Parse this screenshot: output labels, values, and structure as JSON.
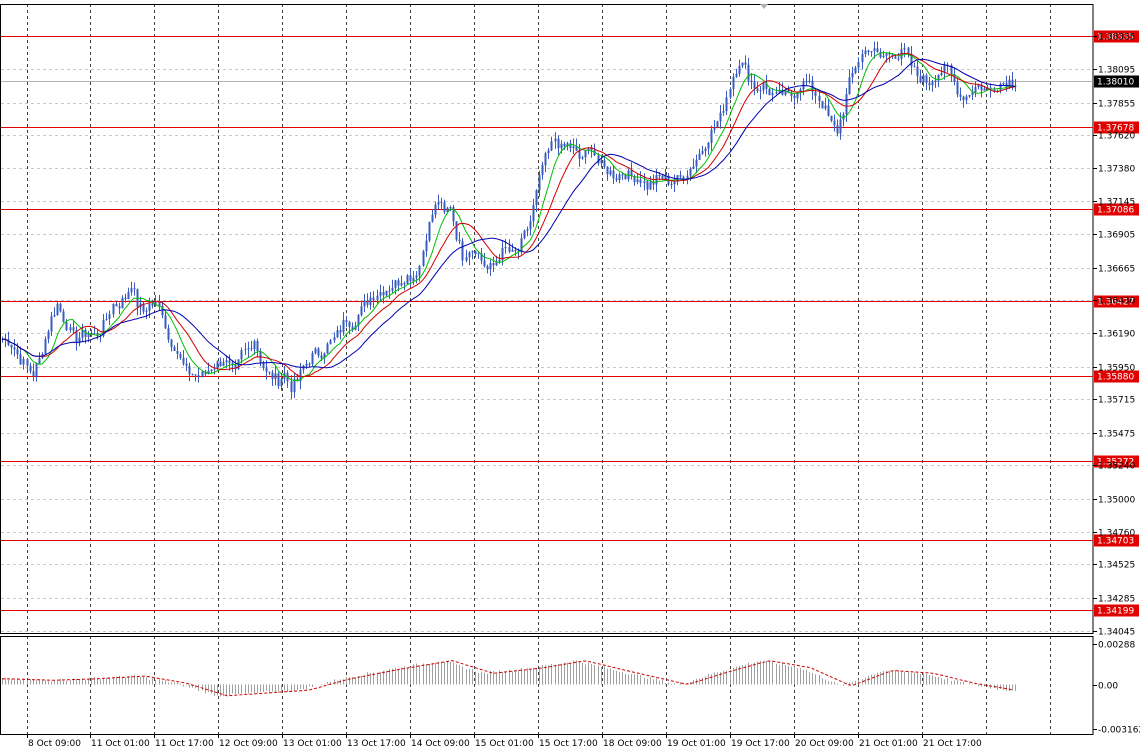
{
  "chart_data": [
    {
      "type": "candlestick",
      "ylim": [
        1.34045,
        1.38335
      ],
      "y_ticks": [
        "1.38335",
        "1.38095",
        "1.37855",
        "1.37620",
        "1.37380",
        "1.37145",
        "1.36905",
        "1.36665",
        "1.36430",
        "1.36190",
        "1.35950",
        "1.35715",
        "1.35475",
        "1.35240",
        "1.35000",
        "1.34760",
        "1.34525",
        "1.34285",
        "1.34045"
      ],
      "current_price": "1.38010",
      "levels": [
        "1.38335",
        "1.37678",
        "1.37086",
        "1.36427",
        "1.35880",
        "1.35272",
        "1.34703",
        "1.34199"
      ],
      "x_labels": [
        "8 Oct 09:00",
        "11 Oct 01:00",
        "11 Oct 17:00",
        "12 Oct 09:00",
        "13 Oct 01:00",
        "13 Oct 17:00",
        "14 Oct 09:00",
        "15 Oct 01:00",
        "15 Oct 17:00",
        "18 Oct 09:00",
        "19 Oct 01:00",
        "19 Oct 17:00",
        "20 Oct 09:00",
        "21 Oct 01:00",
        "21 Oct 17:00"
      ],
      "close_path": [
        [
          0,
          1.3615
        ],
        [
          6,
          1.3614
        ],
        [
          12,
          1.3608
        ],
        [
          18,
          1.36
        ],
        [
          24,
          1.3595
        ],
        [
          30,
          1.359
        ],
        [
          36,
          1.36
        ],
        [
          42,
          1.3615
        ],
        [
          48,
          1.363
        ],
        [
          54,
          1.364
        ],
        [
          60,
          1.363
        ],
        [
          66,
          1.362
        ],
        [
          72,
          1.3615
        ],
        [
          78,
          1.3618
        ],
        [
          84,
          1.362
        ],
        [
          90,
          1.3618
        ],
        [
          96,
          1.362
        ],
        [
          102,
          1.363
        ],
        [
          108,
          1.364
        ],
        [
          114,
          1.364
        ],
        [
          120,
          1.3645
        ],
        [
          126,
          1.3655
        ],
        [
          132,
          1.364
        ],
        [
          138,
          1.3635
        ],
        [
          144,
          1.364
        ],
        [
          150,
          1.364
        ],
        [
          156,
          1.3635
        ],
        [
          162,
          1.3615
        ],
        [
          168,
          1.361
        ],
        [
          174,
          1.36
        ],
        [
          180,
          1.3592
        ],
        [
          186,
          1.359
        ],
        [
          192,
          1.3588
        ],
        [
          198,
          1.359
        ],
        [
          204,
          1.3595
        ],
        [
          210,
          1.3597
        ],
        [
          216,
          1.36
        ],
        [
          222,
          1.3595
        ],
        [
          228,
          1.359
        ],
        [
          234,
          1.3605
        ],
        [
          240,
          1.3608
        ],
        [
          246,
          1.3615
        ],
        [
          252,
          1.36
        ],
        [
          258,
          1.359
        ],
        [
          264,
          1.3588
        ],
        [
          270,
          1.3585
        ],
        [
          276,
          1.359
        ],
        [
          282,
          1.358
        ],
        [
          288,
          1.3585
        ],
        [
          294,
          1.3595
        ],
        [
          300,
          1.36
        ],
        [
          306,
          1.3605
        ],
        [
          312,
          1.3605
        ],
        [
          318,
          1.361
        ],
        [
          324,
          1.3615
        ],
        [
          330,
          1.3622
        ],
        [
          336,
          1.363
        ],
        [
          342,
          1.3625
        ],
        [
          348,
          1.3632
        ],
        [
          354,
          1.364
        ],
        [
          360,
          1.3645
        ],
        [
          366,
          1.3648
        ],
        [
          372,
          1.365
        ],
        [
          378,
          1.3652
        ],
        [
          384,
          1.3655
        ],
        [
          390,
          1.3658
        ],
        [
          396,
          1.366
        ],
        [
          402,
          1.366
        ],
        [
          408,
          1.3668
        ],
        [
          414,
          1.369
        ],
        [
          420,
          1.3705
        ],
        [
          426,
          1.3715
        ],
        [
          432,
          1.3705
        ],
        [
          438,
          1.3712
        ],
        [
          444,
          1.369
        ],
        [
          450,
          1.3675
        ],
        [
          456,
          1.368
        ],
        [
          462,
          1.368
        ],
        [
          468,
          1.3672
        ],
        [
          474,
          1.3665
        ],
        [
          480,
          1.3668
        ],
        [
          486,
          1.3675
        ],
        [
          492,
          1.368
        ],
        [
          498,
          1.3676
        ],
        [
          504,
          1.3678
        ],
        [
          510,
          1.369
        ],
        [
          516,
          1.37
        ],
        [
          522,
          1.372
        ],
        [
          528,
          1.374
        ],
        [
          534,
          1.375
        ],
        [
          540,
          1.376
        ],
        [
          546,
          1.3752
        ],
        [
          552,
          1.3755
        ],
        [
          558,
          1.3752
        ],
        [
          564,
          1.3745
        ],
        [
          570,
          1.3748
        ],
        [
          576,
          1.3755
        ],
        [
          582,
          1.3742
        ],
        [
          588,
          1.3738
        ],
        [
          594,
          1.3735
        ],
        [
          600,
          1.3732
        ],
        [
          606,
          1.3735
        ],
        [
          612,
          1.3733
        ],
        [
          618,
          1.3732
        ],
        [
          624,
          1.373
        ],
        [
          630,
          1.3725
        ],
        [
          636,
          1.3728
        ],
        [
          642,
          1.3732
        ],
        [
          648,
          1.373
        ],
        [
          654,
          1.3728
        ],
        [
          660,
          1.373
        ],
        [
          666,
          1.3733
        ],
        [
          672,
          1.3738
        ],
        [
          678,
          1.3745
        ],
        [
          684,
          1.3752
        ],
        [
          690,
          1.376
        ],
        [
          696,
          1.3768
        ],
        [
          702,
          1.3775
        ],
        [
          708,
          1.379
        ],
        [
          714,
          1.3805
        ],
        [
          720,
          1.3815
        ],
        [
          726,
          1.381
        ],
        [
          732,
          1.38
        ],
        [
          738,
          1.3795
        ],
        [
          744,
          1.3798
        ],
        [
          750,
          1.3793
        ],
        [
          756,
          1.379
        ],
        [
          762,
          1.3792
        ],
        [
          768,
          1.379
        ],
        [
          774,
          1.3792
        ],
        [
          780,
          1.3798
        ],
        [
          786,
          1.38
        ],
        [
          792,
          1.3795
        ],
        [
          798,
          1.3788
        ],
        [
          804,
          1.378
        ],
        [
          810,
          1.377
        ],
        [
          816,
          1.3765
        ],
        [
          822,
          1.378
        ],
        [
          828,
          1.38
        ],
        [
          834,
          1.3812
        ],
        [
          840,
          1.382
        ],
        [
          846,
          1.3825
        ],
        [
          852,
          1.3822
        ],
        [
          858,
          1.3818
        ],
        [
          864,
          1.382
        ],
        [
          870,
          1.3822
        ],
        [
          876,
          1.3818
        ],
        [
          882,
          1.3823
        ],
        [
          888,
          1.3812
        ],
        [
          894,
          1.3805
        ],
        [
          900,
          1.3802
        ],
        [
          906,
          1.38
        ],
        [
          912,
          1.3805
        ],
        [
          918,
          1.3808
        ],
        [
          924,
          1.381
        ],
        [
          930,
          1.38
        ],
        [
          936,
          1.379
        ],
        [
          942,
          1.379
        ],
        [
          948,
          1.3795
        ],
        [
          954,
          1.3798
        ],
        [
          960,
          1.3795
        ],
        [
          966,
          1.3795
        ],
        [
          972,
          1.3798
        ],
        [
          978,
          1.38
        ],
        [
          984,
          1.3801
        ],
        [
          990,
          1.3801
        ]
      ]
    },
    {
      "type": "bar",
      "title": "",
      "ylim": [
        -0.003162,
        0.00288
      ],
      "y_ticks": [
        "0.00288",
        "0.00",
        "-0.003162"
      ],
      "osc_path": [
        [
          0,
          0.0004
        ],
        [
          40,
          0.0003
        ],
        [
          80,
          0.0004
        ],
        [
          130,
          0.0006
        ],
        [
          170,
          0.0001
        ],
        [
          210,
          -0.0008
        ],
        [
          250,
          -0.0006
        ],
        [
          290,
          -0.0004
        ],
        [
          330,
          0.0004
        ],
        [
          380,
          0.0011
        ],
        [
          430,
          0.0017
        ],
        [
          470,
          0.0008
        ],
        [
          520,
          0.0012
        ],
        [
          560,
          0.0017
        ],
        [
          600,
          0.001
        ],
        [
          660,
          0.0
        ],
        [
          700,
          0.0009
        ],
        [
          740,
          0.0017
        ],
        [
          780,
          0.0012
        ],
        [
          820,
          -0.0001
        ],
        [
          860,
          0.001
        ],
        [
          900,
          0.0008
        ],
        [
          940,
          0.0001
        ],
        [
          980,
          -0.0004
        ]
      ]
    }
  ]
}
